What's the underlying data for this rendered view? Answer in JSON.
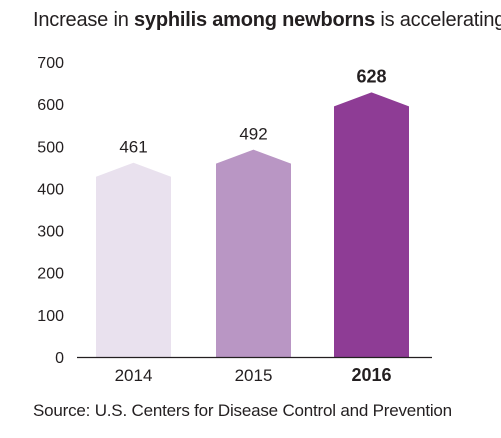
{
  "title": {
    "before": "Increase in ",
    "bold": "syphilis among newborns",
    "after": " is accelerating"
  },
  "source": "Source: U.S. Centers for Disease Control and Prevention",
  "chart_data": {
    "type": "bar",
    "title": "Increase in syphilis among newborns is accelerating",
    "categories": [
      "2014",
      "2015",
      "2016"
    ],
    "values": [
      461,
      492,
      628
    ],
    "value_labels": [
      "461",
      "492",
      "628"
    ],
    "highlight_index": 2,
    "bar_colors": [
      "#e9e1ee",
      "#b996c4",
      "#8e3c95"
    ],
    "xlabel": "",
    "ylabel": "",
    "ylim": [
      0,
      700
    ],
    "yticks": [
      0,
      100,
      200,
      300,
      400,
      500,
      600,
      700
    ],
    "grid": false,
    "legend": "none"
  },
  "colors": {
    "text": "#231f20",
    "axis": "#231f20"
  }
}
